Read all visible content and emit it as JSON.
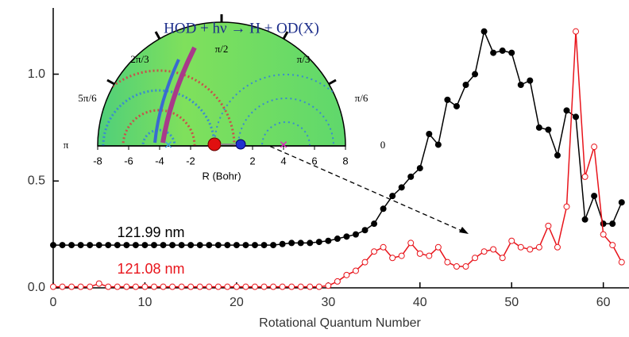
{
  "chart_data": {
    "type": "line",
    "xlabel": "Rotational Quantum Number",
    "x": [
      0,
      1,
      2,
      3,
      4,
      5,
      6,
      7,
      8,
      9,
      10,
      11,
      12,
      13,
      14,
      15,
      16,
      17,
      18,
      19,
      20,
      21,
      22,
      23,
      24,
      25,
      26,
      27,
      28,
      29,
      30,
      31,
      32,
      33,
      34,
      35,
      36,
      37,
      38,
      39,
      40,
      41,
      42,
      43,
      44,
      45,
      46,
      47,
      48,
      49,
      50,
      51,
      52,
      53,
      54,
      55,
      56,
      57,
      58,
      59,
      60,
      61,
      62
    ],
    "xlim": [
      0,
      62.8
    ],
    "xticks": [
      0,
      10,
      20,
      30,
      40,
      50,
      60
    ],
    "ylim": [
      0,
      1.31
    ],
    "yticks": [
      {
        "value": 0,
        "label": "0.0"
      },
      {
        "value": 0.5,
        "label": "0.5"
      },
      {
        "value": 1,
        "label": "1.0"
      }
    ],
    "series": [
      {
        "name": "121.99 nm",
        "color": "#000000",
        "marker": "filled",
        "values": [
          0.2,
          0.2,
          0.2,
          0.2,
          0.2,
          0.2,
          0.2,
          0.2,
          0.2,
          0.2,
          0.2,
          0.2,
          0.2,
          0.2,
          0.2,
          0.2,
          0.2,
          0.2,
          0.2,
          0.2,
          0.2,
          0.2,
          0.2,
          0.2,
          0.2,
          0.205,
          0.21,
          0.21,
          0.21,
          0.215,
          0.22,
          0.23,
          0.24,
          0.25,
          0.27,
          0.3,
          0.37,
          0.43,
          0.47,
          0.52,
          0.56,
          0.72,
          0.67,
          0.88,
          0.85,
          0.95,
          1.0,
          1.2,
          1.1,
          1.11,
          1.1,
          0.95,
          0.97,
          0.75,
          0.74,
          0.62,
          0.83,
          0.8,
          0.32,
          0.43,
          0.3,
          0.3,
          0.4
        ]
      },
      {
        "name": "121.08 nm",
        "color": "#e8141b",
        "marker": "open",
        "values": [
          0.005,
          0.005,
          0.005,
          0.005,
          0.005,
          0.02,
          0.005,
          0.005,
          0.005,
          0.005,
          0.005,
          0.005,
          0.005,
          0.005,
          0.005,
          0.005,
          0.005,
          0.005,
          0.005,
          0.005,
          0.005,
          0.005,
          0.005,
          0.005,
          0.005,
          0.005,
          0.005,
          0.005,
          0.005,
          0.005,
          0.01,
          0.03,
          0.06,
          0.08,
          0.12,
          0.17,
          0.19,
          0.14,
          0.15,
          0.21,
          0.16,
          0.15,
          0.19,
          0.12,
          0.1,
          0.1,
          0.14,
          0.17,
          0.18,
          0.14,
          0.22,
          0.19,
          0.18,
          0.19,
          0.29,
          0.19,
          0.38,
          1.2,
          0.52,
          0.66,
          0.25,
          0.2,
          0.12
        ]
      }
    ]
  },
  "inset": {
    "title": "HOD + hν → H + OD(X)",
    "xlabel": "R (Bohr)",
    "xlim": [
      -8,
      8
    ],
    "xticks": [
      -8,
      -6,
      -4,
      -2,
      2,
      4,
      6,
      8
    ],
    "angle_labels": [
      "π",
      "5π/6",
      "2π/3",
      "π/2",
      "π/3",
      "π/6",
      "0"
    ]
  }
}
